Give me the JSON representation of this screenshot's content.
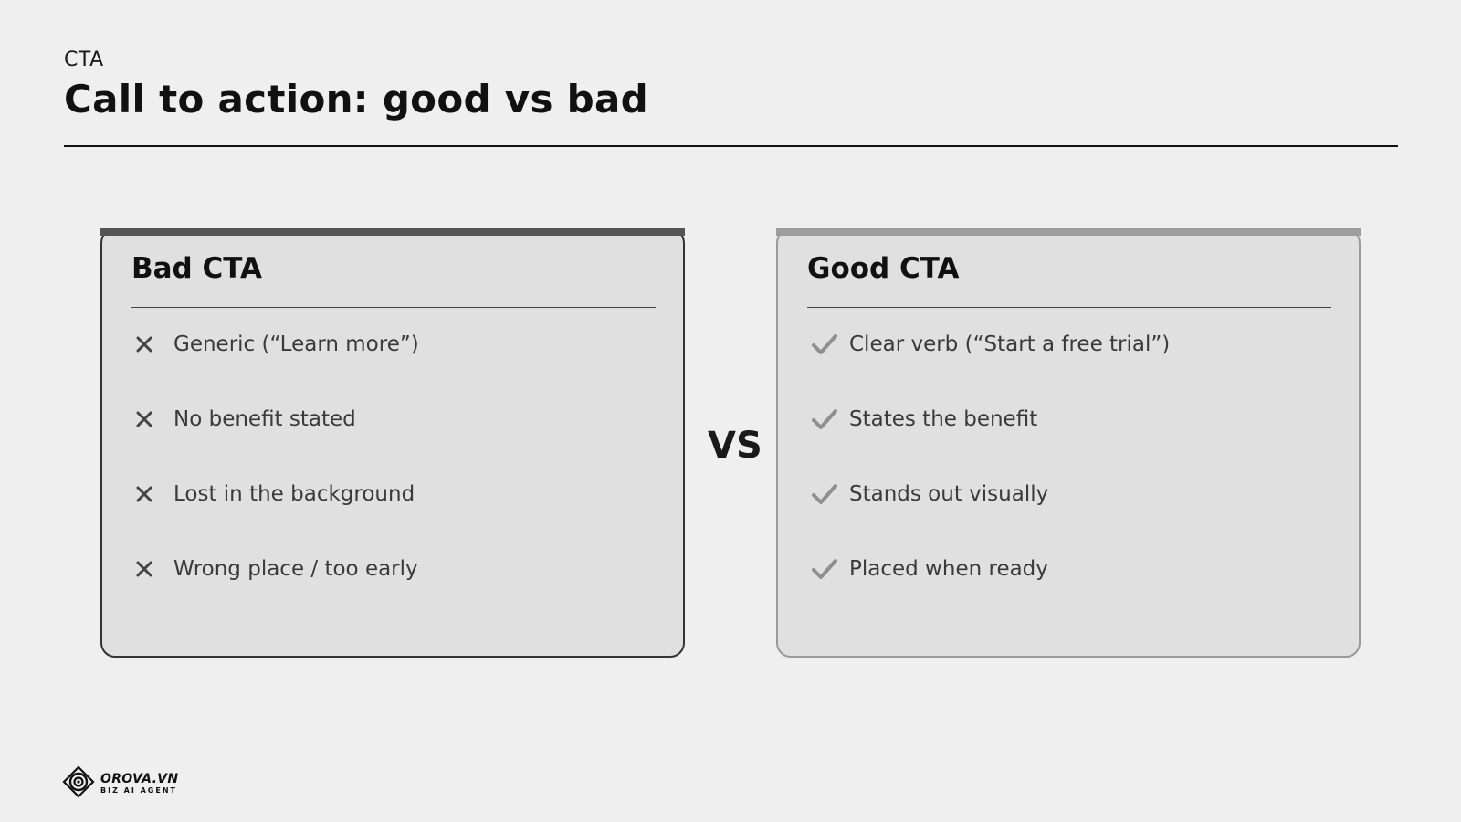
{
  "header": {
    "eyebrow": "CTA",
    "title": "Call to action: good vs bad"
  },
  "bad_card": {
    "title": "Bad CTA",
    "icon": "x-icon",
    "accent_color": "#555555",
    "items": [
      "Generic (“Learn more”)",
      "No benefit stated",
      "Lost in the background",
      "Wrong place / too early"
    ]
  },
  "vs_label": "VS",
  "good_card": {
    "title": "Good CTA",
    "icon": "check-icon",
    "accent_color": "#9e9e9e",
    "items": [
      "Clear verb (“Start a free trial”)",
      "States the benefit",
      "Stands out visually",
      "Placed when ready"
    ]
  },
  "footer": {
    "logo_name": "OROVA.VN",
    "logo_tagline": "BIZ AI AGENT",
    "logo_icon": "orova-logo-icon"
  }
}
